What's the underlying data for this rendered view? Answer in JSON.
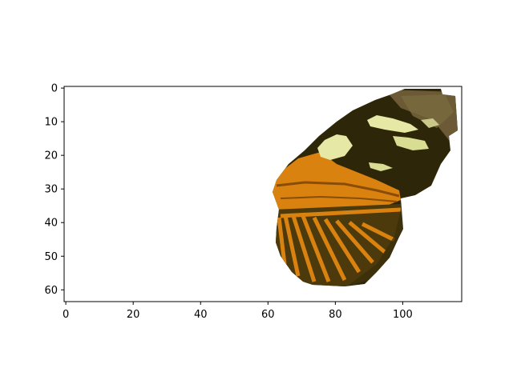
{
  "figure": {
    "x_ticks": [
      "0",
      "20",
      "40",
      "60",
      "80",
      "100"
    ],
    "y_ticks": [
      "0",
      "10",
      "20",
      "30",
      "40",
      "50",
      "60"
    ],
    "xlim": [
      -0.5,
      117.5
    ],
    "ylim": [
      63.5,
      -0.5
    ],
    "image_content": "butterfly-wing",
    "colors": {
      "background": "#ffffff",
      "wing_dark": "#2e2608",
      "wing_brown": "#5a4512",
      "wing_orange": "#d9820f",
      "wing_cream": "#e6e8a6",
      "edge_grey": "#7a6a40"
    }
  }
}
